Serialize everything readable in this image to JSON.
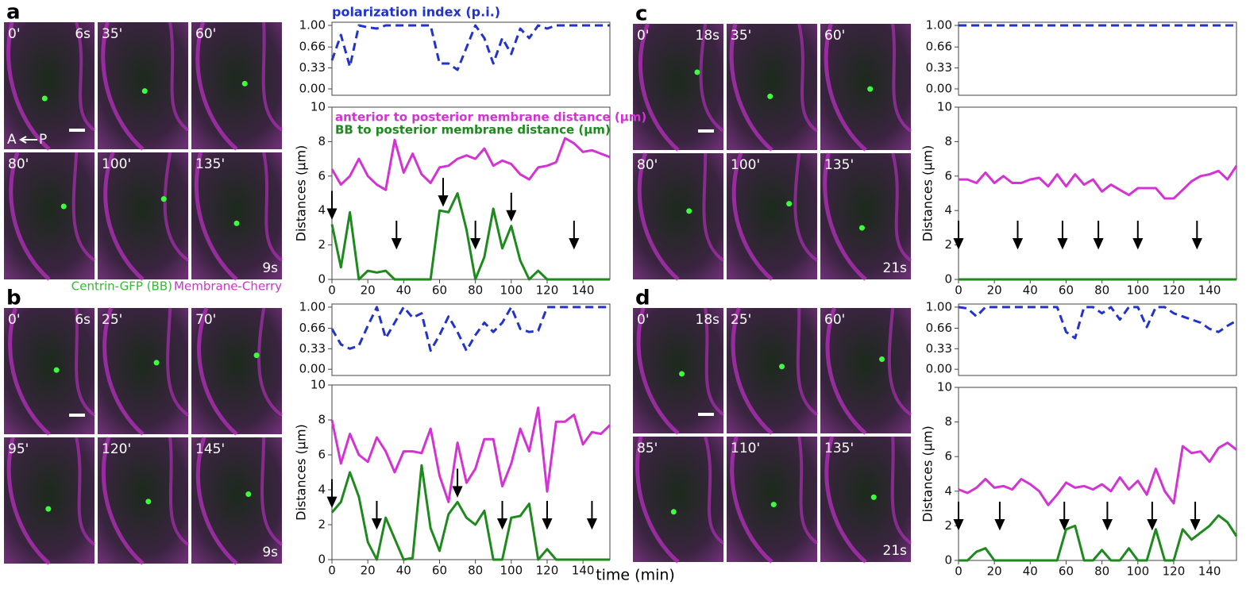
{
  "panels": [
    {
      "label": "a",
      "frames": [
        "0'",
        "35'",
        "60'",
        "80'",
        "100'",
        "135'"
      ],
      "start_time": "6s",
      "end_time": "9s",
      "axis_from": "A",
      "axis_to": "P"
    },
    {
      "label": "b",
      "frames": [
        "0'",
        "25'",
        "70'",
        "95'",
        "120'",
        "145'"
      ],
      "start_time": "6s",
      "end_time": "9s"
    },
    {
      "label": "c",
      "frames": [
        "0'",
        "35'",
        "60'",
        "80'",
        "100'",
        "135'"
      ],
      "start_time": "18s",
      "end_time": "21s"
    },
    {
      "label": "d",
      "frames": [
        "0'",
        "25'",
        "60'",
        "85'",
        "110'",
        "135'"
      ],
      "start_time": "18s",
      "end_time": "21s"
    }
  ],
  "caption": {
    "gfp": "Centrin-GFP (BB)",
    "cherry": "Membrane-Cherry"
  },
  "chart_data": [
    {
      "type": "line",
      "title": "polarization index (p.i.)",
      "x": [
        0,
        5,
        10,
        15,
        20,
        25,
        30,
        35,
        40,
        45,
        50,
        55,
        60,
        65,
        70,
        75,
        80,
        85,
        90,
        95,
        100,
        105,
        110,
        115,
        120,
        125,
        130,
        135,
        140,
        145,
        150,
        155
      ],
      "xlim": [
        0,
        155
      ],
      "ylim": [
        -0.1,
        1.05
      ],
      "yticks": [
        {
          "value": 0,
          "label": "0.00"
        },
        0.33,
        0.66,
        {
          "value": 1,
          "label": "1.00"
        }
      ],
      "series": [
        {
          "color": "#2233cc",
          "linestyle": "dashed",
          "values": [
            0.45,
            0.85,
            0.35,
            1,
            0.97,
            0.95,
            1,
            1,
            1,
            1,
            1,
            1,
            0.4,
            0.4,
            0.3,
            0.65,
            1,
            0.8,
            0.4,
            0.8,
            0.55,
            0.95,
            0.8,
            1,
            0.95,
            1,
            1,
            1,
            1,
            1,
            1,
            1
          ]
        }
      ]
    },
    {
      "type": "line",
      "ylabel": "Distances (μm)",
      "legend": "upper left",
      "x": [
        0,
        5,
        10,
        15,
        20,
        25,
        30,
        35,
        40,
        45,
        50,
        55,
        60,
        65,
        70,
        75,
        80,
        85,
        90,
        95,
        100,
        105,
        110,
        115,
        120,
        125,
        130,
        135,
        140,
        145,
        150,
        155
      ],
      "xlim": [
        0,
        155
      ],
      "xticks": [
        0,
        20,
        40,
        60,
        80,
        100,
        120,
        140
      ],
      "ylim": [
        0,
        10
      ],
      "yticks": [
        0,
        2,
        4,
        6,
        8,
        10
      ],
      "series": [
        {
          "name": "anterior to posterior membrane distance (μm)",
          "color": "#d433d4",
          "values": [
            6.4,
            5.5,
            6,
            7,
            6,
            5.5,
            5.2,
            8.1,
            6.2,
            7.3,
            6.1,
            5.6,
            6.5,
            6.6,
            7,
            7.2,
            7,
            7.6,
            6.6,
            6.9,
            6.7,
            6.1,
            5.8,
            6.5,
            6.6,
            6.8,
            8.2,
            7.9,
            7.4,
            7.5,
            7.3,
            7.1
          ]
        },
        {
          "name": "BB to posterior membrane distance (μm)",
          "color": "#1e8a1e",
          "values": [
            3.2,
            0.7,
            3.9,
            0,
            0.5,
            0.4,
            0.5,
            0,
            0,
            0,
            0,
            0,
            4,
            3.9,
            5,
            2.9,
            0,
            1.3,
            4.1,
            1.8,
            3.1,
            1.1,
            0,
            0.5,
            0,
            0,
            0,
            0,
            0,
            0,
            0,
            0
          ]
        }
      ],
      "arrows": [
        0,
        36,
        62,
        80,
        100,
        135
      ]
    },
    {
      "type": "line",
      "x": [
        0,
        5,
        10,
        15,
        20,
        25,
        30,
        35,
        40,
        45,
        50,
        55,
        60,
        65,
        70,
        75,
        80,
        85,
        90,
        95,
        100,
        105,
        110,
        115,
        120,
        125,
        130,
        135,
        140,
        145,
        150,
        155
      ],
      "xlim": [
        0,
        155
      ],
      "ylim": [
        -0.1,
        1.05
      ],
      "yticks": [
        {
          "value": 0,
          "label": "0.00"
        },
        0.33,
        0.66,
        {
          "value": 1,
          "label": "1.00"
        }
      ],
      "series": [
        {
          "color": "#2233cc",
          "linestyle": "dashed",
          "values": [
            0.65,
            0.4,
            0.33,
            0.38,
            0.7,
            1,
            0.5,
            0.75,
            1,
            0.83,
            0.9,
            0.3,
            0.55,
            0.85,
            0.6,
            0.3,
            0.55,
            0.75,
            0.6,
            0.75,
            1,
            0.65,
            0.6,
            0.62,
            1,
            1,
            1,
            1,
            1,
            1,
            1,
            1
          ]
        }
      ]
    },
    {
      "type": "line",
      "ylabel": "Distances (μm)",
      "xlabel": "time (min)",
      "x": [
        0,
        5,
        10,
        15,
        20,
        25,
        30,
        35,
        40,
        45,
        50,
        55,
        60,
        65,
        70,
        75,
        80,
        85,
        90,
        95,
        100,
        105,
        110,
        115,
        120,
        125,
        130,
        135,
        140,
        145,
        150,
        155
      ],
      "xlim": [
        0,
        155
      ],
      "xticks": [
        0,
        20,
        40,
        60,
        80,
        100,
        120,
        140
      ],
      "ylim": [
        0,
        10
      ],
      "yticks": [
        0,
        2,
        4,
        6,
        8,
        10
      ],
      "series": [
        {
          "color": "#d433d4",
          "values": [
            8,
            5.5,
            7.2,
            6,
            5.6,
            7,
            6.2,
            5,
            6.2,
            6.2,
            6.1,
            7.5,
            4.8,
            3.3,
            6.7,
            4.4,
            5.2,
            6.9,
            6.9,
            4.2,
            5.5,
            7.5,
            6.2,
            8.7,
            3.9,
            7.9,
            7.9,
            8.3,
            6.6,
            7.3,
            7.2,
            7.7
          ]
        },
        {
          "color": "#1e8a1e",
          "values": [
            2.7,
            3.3,
            5,
            3.6,
            1,
            0,
            2.4,
            1.2,
            0,
            0.1,
            5.4,
            1.8,
            0.5,
            2.6,
            3.3,
            2.4,
            2,
            2.8,
            0,
            0,
            2.4,
            2.5,
            3.2,
            0,
            0.6,
            0,
            0,
            0,
            0,
            0,
            0,
            0
          ]
        }
      ],
      "arrows": [
        0,
        25,
        70,
        95,
        120,
        145
      ]
    },
    {
      "type": "line",
      "x": [
        0,
        5,
        10,
        15,
        20,
        25,
        30,
        35,
        40,
        45,
        50,
        55,
        60,
        65,
        70,
        75,
        80,
        85,
        90,
        95,
        100,
        105,
        110,
        115,
        120,
        125,
        130,
        135,
        140,
        145,
        150,
        155
      ],
      "xlim": [
        0,
        155
      ],
      "ylim": [
        -0.1,
        1.05
      ],
      "yticks": [
        {
          "value": 0,
          "label": "0.00"
        },
        0.33,
        0.66,
        {
          "value": 1,
          "label": "1.00"
        }
      ],
      "series": [
        {
          "color": "#2233cc",
          "linestyle": "dashed",
          "values": [
            1,
            1,
            1,
            1,
            1,
            1,
            1,
            1,
            1,
            1,
            1,
            1,
            1,
            1,
            1,
            1,
            1,
            1,
            1,
            1,
            1,
            1,
            1,
            1,
            1,
            1,
            1,
            1,
            1,
            1,
            1,
            1
          ]
        }
      ]
    },
    {
      "type": "line",
      "ylabel": "Distances (μm)",
      "x": [
        0,
        5,
        10,
        15,
        20,
        25,
        30,
        35,
        40,
        45,
        50,
        55,
        60,
        65,
        70,
        75,
        80,
        85,
        90,
        95,
        100,
        105,
        110,
        115,
        120,
        125,
        130,
        135,
        140,
        145,
        150,
        155
      ],
      "xlim": [
        0,
        155
      ],
      "xticks": [
        0,
        20,
        40,
        60,
        80,
        100,
        120,
        140
      ],
      "ylim": [
        0,
        10
      ],
      "yticks": [
        0,
        2,
        4,
        6,
        8,
        10
      ],
      "series": [
        {
          "color": "#d433d4",
          "values": [
            5.8,
            5.8,
            5.6,
            6.2,
            5.6,
            6,
            5.6,
            5.6,
            5.8,
            5.9,
            5.4,
            6.1,
            5.4,
            6.1,
            5.5,
            5.8,
            5.1,
            5.5,
            5.2,
            4.9,
            5.3,
            5.3,
            5.3,
            4.7,
            4.7,
            5.2,
            5.7,
            6,
            6.1,
            6.3,
            5.8,
            6.6
          ]
        },
        {
          "color": "#1e8a1e",
          "values": [
            0,
            0,
            0,
            0,
            0,
            0,
            0,
            0,
            0,
            0,
            0,
            0,
            0,
            0,
            0,
            0,
            0,
            0,
            0,
            0,
            0,
            0,
            0,
            0,
            0,
            0,
            0,
            0,
            0,
            0,
            0,
            0
          ]
        }
      ],
      "arrows": [
        0,
        33,
        58,
        78,
        100,
        133
      ]
    },
    {
      "type": "line",
      "x": [
        0,
        5,
        10,
        15,
        20,
        25,
        30,
        35,
        40,
        45,
        50,
        55,
        60,
        65,
        70,
        75,
        80,
        85,
        90,
        95,
        100,
        105,
        110,
        115,
        120,
        125,
        130,
        135,
        140,
        145,
        150,
        155
      ],
      "xlim": [
        0,
        155
      ],
      "ylim": [
        -0.1,
        1.05
      ],
      "yticks": [
        {
          "value": 0,
          "label": "0.00"
        },
        0.33,
        0.66,
        {
          "value": 1,
          "label": "1.00"
        }
      ],
      "series": [
        {
          "color": "#2233cc",
          "linestyle": "dashed",
          "values": [
            1,
            0.98,
            0.85,
            1,
            1,
            1,
            1,
            1,
            1,
            1,
            1,
            1,
            0.6,
            0.5,
            1,
            1,
            0.9,
            1,
            0.8,
            1,
            1,
            0.68,
            1,
            1,
            0.9,
            0.85,
            0.8,
            0.75,
            0.65,
            0.6,
            0.7,
            0.78
          ]
        }
      ]
    },
    {
      "type": "line",
      "ylabel": "Distances (μm)",
      "x": [
        0,
        5,
        10,
        15,
        20,
        25,
        30,
        35,
        40,
        45,
        50,
        55,
        60,
        65,
        70,
        75,
        80,
        85,
        90,
        95,
        100,
        105,
        110,
        115,
        120,
        125,
        130,
        135,
        140,
        145,
        150,
        155
      ],
      "xlim": [
        0,
        155
      ],
      "xticks": [
        0,
        20,
        40,
        60,
        80,
        100,
        120,
        140
      ],
      "ylim": [
        0,
        10
      ],
      "yticks": [
        0,
        2,
        4,
        6,
        8,
        10
      ],
      "series": [
        {
          "color": "#d433d4",
          "values": [
            4.1,
            3.9,
            4.2,
            4.7,
            4.2,
            4.3,
            4.1,
            4.7,
            4.4,
            4,
            3.2,
            3.8,
            4.5,
            4.2,
            4.3,
            4.1,
            4.4,
            4,
            4.8,
            4.1,
            4.6,
            3.8,
            5.3,
            4,
            3.3,
            6.6,
            6.2,
            6.3,
            5.7,
            6.5,
            6.8,
            6.4
          ]
        },
        {
          "color": "#1e8a1e",
          "values": [
            0,
            0,
            0.5,
            0.7,
            0,
            0,
            0,
            0,
            0,
            0,
            0,
            0,
            1.8,
            2,
            0,
            0,
            0.6,
            0,
            0,
            0.7,
            0,
            0,
            1.8,
            0,
            0,
            1.8,
            1.2,
            1.6,
            2,
            2.6,
            2.2,
            1.4
          ]
        }
      ],
      "arrows": [
        0,
        23,
        59,
        83,
        108,
        132
      ]
    }
  ]
}
